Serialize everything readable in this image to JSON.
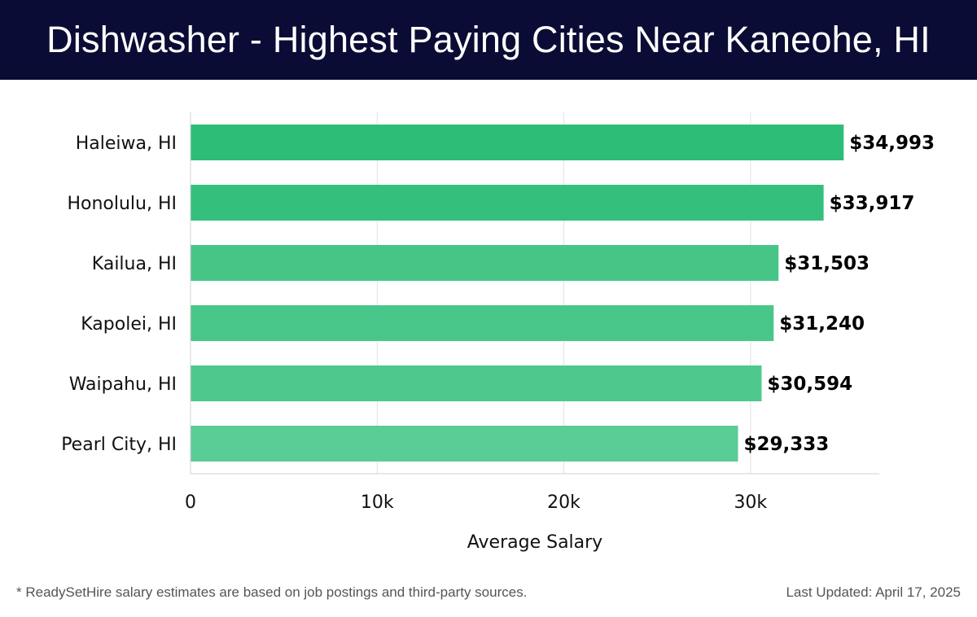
{
  "header": {
    "title": "Dishwasher - Highest Paying Cities Near Kaneohe, HI"
  },
  "chart_data": {
    "type": "bar",
    "orientation": "horizontal",
    "title": "Dishwasher - Highest Paying Cities Near Kaneohe, HI",
    "xlabel": "Average Salary",
    "ylabel": "",
    "categories": [
      "Haleiwa, HI",
      "Honolulu, HI",
      "Kailua, HI",
      "Kapolei, HI",
      "Waipahu, HI",
      "Pearl City, HI"
    ],
    "values": [
      34993,
      33917,
      31503,
      31240,
      30594,
      29333
    ],
    "value_labels": [
      "$34,993",
      "$33,917",
      "$31,503",
      "$31,240",
      "$30,594",
      "$29,333"
    ],
    "xlim": [
      0,
      36900
    ],
    "x_ticks": [
      0,
      10000,
      20000,
      30000
    ],
    "x_tick_labels": [
      "0",
      "10k",
      "20k",
      "30k"
    ],
    "grid": "vertical",
    "bar_colors": [
      "#2ebd77",
      "#34c07c",
      "#46c587",
      "#49c689",
      "#4fc88d",
      "#5acc95"
    ]
  },
  "footer": {
    "note": "* ReadySetHire salary estimates are based on job postings and third-party sources.",
    "updated": "Last Updated: April 17, 2025"
  }
}
